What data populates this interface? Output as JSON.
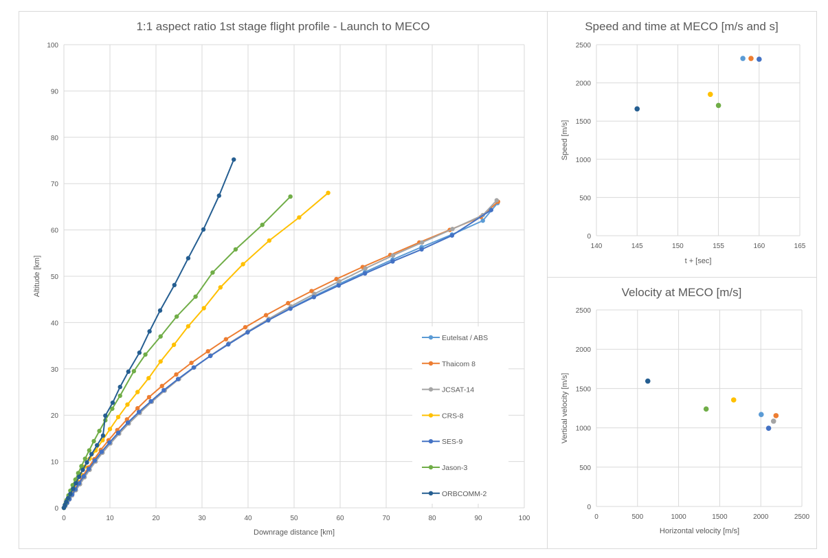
{
  "chart_data": [
    {
      "id": "flight-profile",
      "type": "line",
      "title": "1:1 aspect ratio 1st stage flight profile - Launch to MECO",
      "xlabel": "Downrage distance [km]",
      "ylabel": "Altitude [km]",
      "xlim": [
        0,
        100
      ],
      "ylim": [
        0,
        100
      ],
      "xticks": [
        "0",
        "10",
        "20",
        "30",
        "40",
        "50",
        "60",
        "70",
        "80",
        "90",
        "100"
      ],
      "yticks": [
        "0",
        "10",
        "20",
        "30",
        "40",
        "50",
        "60",
        "70",
        "80",
        "90",
        "100"
      ],
      "grid": true,
      "legend_position": "bottom-right-inside",
      "series": [
        {
          "name": "Eutelsat / ABS",
          "color": "#5B9BD5",
          "x": [
            0,
            0.3,
            0.7,
            1.2,
            1.8,
            2.5,
            3.3,
            4.3,
            5.4,
            6.7,
            8.2,
            9.9,
            11.8,
            13.9,
            16.3,
            18.9,
            21.7,
            24.8,
            28.2,
            31.8,
            35.7,
            39.9,
            44.4,
            49.2,
            54.3,
            59.7,
            65.4,
            71.4,
            77.7,
            84.3,
            91.0,
            94.2
          ],
          "y": [
            0,
            0.5,
            1.1,
            1.9,
            2.9,
            4.0,
            5.3,
            6.8,
            8.4,
            10.2,
            12.1,
            14.1,
            16.2,
            18.4,
            20.7,
            23.0,
            25.4,
            27.8,
            30.3,
            32.8,
            35.3,
            37.9,
            40.5,
            43.1,
            45.7,
            48.3,
            50.9,
            53.6,
            56.3,
            59.0,
            62.0,
            65.8
          ]
        },
        {
          "name": "Thaicom 8",
          "color": "#ED7D31",
          "x": [
            0,
            0.3,
            0.7,
            1.2,
            1.8,
            2.5,
            3.3,
            4.2,
            5.3,
            6.6,
            8.0,
            9.7,
            11.6,
            13.7,
            16.0,
            18.5,
            21.3,
            24.4,
            27.7,
            31.3,
            35.2,
            39.4,
            43.9,
            48.7,
            53.8,
            59.2,
            64.9,
            70.9,
            77.2,
            83.8,
            90.6,
            94.3
          ],
          "y": [
            0,
            0.5,
            1.2,
            2.0,
            3.0,
            4.2,
            5.5,
            7.0,
            8.7,
            10.5,
            12.5,
            14.6,
            16.8,
            19.1,
            21.5,
            23.9,
            26.3,
            28.8,
            31.3,
            33.8,
            36.4,
            39.0,
            41.6,
            44.2,
            46.8,
            49.4,
            52.0,
            54.6,
            57.3,
            60.0,
            62.8,
            66.1
          ]
        },
        {
          "name": "JCSAT-14",
          "color": "#A5A5A5",
          "x": [
            0,
            0.3,
            0.7,
            1.2,
            1.8,
            2.6,
            3.5,
            4.5,
            5.6,
            6.9,
            8.4,
            10.1,
            12.0,
            14.1,
            16.5,
            19.1,
            21.9,
            25.0,
            28.3,
            31.9,
            35.8,
            40.0,
            44.5,
            49.3,
            54.4,
            59.8,
            65.5,
            71.5,
            77.8,
            84.4,
            91.0,
            94.0
          ],
          "y": [
            0,
            0.4,
            1.0,
            1.8,
            2.7,
            3.8,
            5.1,
            6.6,
            8.2,
            10.0,
            11.9,
            13.9,
            16.0,
            18.2,
            20.5,
            22.9,
            25.3,
            27.8,
            30.3,
            32.9,
            35.5,
            38.1,
            40.8,
            43.5,
            46.2,
            48.9,
            51.7,
            54.5,
            57.3,
            60.2,
            63.2,
            66.4
          ]
        },
        {
          "name": "CRS-8",
          "color": "#FFC000",
          "x": [
            0,
            0.3,
            0.6,
            1.0,
            1.5,
            2.1,
            2.8,
            3.6,
            4.5,
            5.6,
            6.9,
            8.4,
            10.0,
            11.8,
            13.8,
            16.0,
            18.4,
            21.0,
            23.9,
            27.0,
            30.4,
            34.0,
            38.9,
            44.6,
            51.1,
            57.4
          ],
          "y": [
            0,
            0.7,
            1.5,
            2.4,
            3.4,
            4.6,
            5.9,
            7.3,
            8.9,
            10.6,
            12.4,
            14.6,
            17.0,
            19.6,
            22.3,
            25.0,
            28.0,
            31.6,
            35.2,
            39.2,
            43.1,
            47.6,
            52.6,
            57.7,
            62.7,
            68.0
          ]
        },
        {
          "name": "SES-9",
          "color": "#4472C4",
          "x": [
            0,
            0.3,
            0.7,
            1.2,
            1.8,
            2.5,
            3.3,
            4.3,
            5.4,
            6.7,
            8.2,
            9.9,
            11.8,
            13.9,
            16.3,
            18.9,
            21.7,
            24.8,
            28.2,
            31.8,
            35.7,
            39.9,
            44.4,
            49.2,
            54.3,
            59.7,
            65.4,
            71.4,
            77.7,
            84.3,
            92.8
          ],
          "y": [
            0,
            0.5,
            1.1,
            1.9,
            2.9,
            4.0,
            5.3,
            6.8,
            8.4,
            10.2,
            12.1,
            14.1,
            16.2,
            18.4,
            20.7,
            23.0,
            25.4,
            27.8,
            30.3,
            32.8,
            35.3,
            37.9,
            40.5,
            43.0,
            45.5,
            48.0,
            50.6,
            53.2,
            55.8,
            58.8,
            64.3
          ]
        },
        {
          "name": "Jason-3",
          "color": "#70AD47",
          "x": [
            0,
            0.3,
            0.6,
            1.0,
            1.4,
            1.9,
            2.5,
            3.1,
            3.8,
            4.6,
            5.5,
            6.5,
            7.7,
            9.0,
            10.5,
            12.2,
            15.2,
            17.7,
            21.0,
            24.5,
            28.6,
            32.3,
            37.3,
            43.1,
            49.2
          ],
          "y": [
            0,
            0.8,
            1.7,
            2.7,
            3.7,
            4.9,
            6.1,
            7.5,
            9.0,
            10.6,
            12.4,
            14.4,
            16.6,
            18.9,
            21.4,
            24.2,
            29.5,
            33.1,
            37.0,
            41.3,
            45.6,
            50.8,
            55.8,
            61.1,
            67.2
          ]
        },
        {
          "name": "ORBCOMM-2",
          "color": "#255E91",
          "x": [
            0,
            0.2,
            0.5,
            0.9,
            1.4,
            2.0,
            2.6,
            3.3,
            4.1,
            5.0,
            6.0,
            7.2,
            8.5,
            9.0,
            10.6,
            12.2,
            14.0,
            16.4,
            18.6,
            20.9,
            24.0,
            27.0,
            30.3,
            33.7,
            36.9
          ],
          "y": [
            0,
            0.6,
            1.3,
            2.1,
            3.0,
            4.1,
            5.3,
            6.7,
            8.2,
            9.8,
            11.6,
            13.5,
            15.6,
            19.9,
            22.7,
            26.1,
            29.4,
            33.5,
            38.1,
            42.6,
            48.1,
            53.9,
            60.1,
            67.4,
            75.2
          ]
        }
      ]
    },
    {
      "id": "speed-time",
      "type": "scatter",
      "title": "Speed and time at MECO [m/s and s]",
      "xlabel": "t + [sec]",
      "ylabel": "Speed [m/s]",
      "xlim": [
        140,
        165
      ],
      "ylim": [
        0,
        2500
      ],
      "xticks": [
        "140",
        "145",
        "150",
        "155",
        "160",
        "165"
      ],
      "yticks": [
        "0",
        "500",
        "1000",
        "1500",
        "2000",
        "2500"
      ],
      "grid": true,
      "points": [
        {
          "series": "Eutelsat / ABS",
          "color": "#5B9BD5",
          "x": 158,
          "y": 2320
        },
        {
          "series": "Thaicom 8",
          "color": "#ED7D31",
          "x": 159,
          "y": 2320
        },
        {
          "series": "SES-9",
          "color": "#4472C4",
          "x": 160,
          "y": 2310
        },
        {
          "series": "CRS-8",
          "color": "#FFC000",
          "x": 154,
          "y": 1850
        },
        {
          "series": "Jason-3",
          "color": "#70AD47",
          "x": 155,
          "y": 1705
        },
        {
          "series": "ORBCOMM-2",
          "color": "#255E91",
          "x": 145,
          "y": 1660
        }
      ]
    },
    {
      "id": "velocity",
      "type": "scatter",
      "title": "Velocity at MECO [m/s]",
      "xlabel": "Horizontal velocity [m/s]",
      "ylabel": "Vertical velocity [m/s]",
      "xlim": [
        0,
        2500
      ],
      "ylim": [
        0,
        2500
      ],
      "xticks": [
        "0",
        "500",
        "1000",
        "1500",
        "2000",
        "2500"
      ],
      "yticks": [
        "0",
        "500",
        "1000",
        "1500",
        "2000",
        "2500"
      ],
      "grid": true,
      "points": [
        {
          "series": "ORBCOMM-2",
          "color": "#255E91",
          "x": 625,
          "y": 1595
        },
        {
          "series": "Jason-3",
          "color": "#70AD47",
          "x": 1335,
          "y": 1240
        },
        {
          "series": "CRS-8",
          "color": "#FFC000",
          "x": 1670,
          "y": 1355
        },
        {
          "series": "Eutelsat / ABS",
          "color": "#5B9BD5",
          "x": 2005,
          "y": 1170
        },
        {
          "series": "Thaicom 8",
          "color": "#ED7D31",
          "x": 2185,
          "y": 1155
        },
        {
          "series": "JCSAT-14",
          "color": "#A5A5A5",
          "x": 2155,
          "y": 1085
        },
        {
          "series": "SES-9",
          "color": "#4472C4",
          "x": 2095,
          "y": 995
        }
      ]
    }
  ]
}
